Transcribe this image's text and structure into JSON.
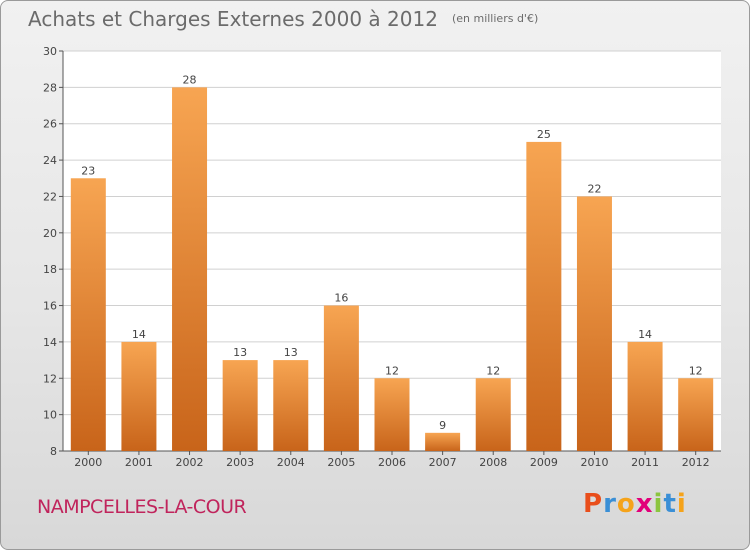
{
  "header": {
    "title": "Achats et Charges Externes 2000 à 2012",
    "subtitle": "(en milliers d'€)"
  },
  "footer": {
    "commune": "NAMPCELLES-LA-COUR",
    "logo_letters": [
      {
        "ch": "P",
        "color": "#e94e1b"
      },
      {
        "ch": "r",
        "color": "#3a8fd6"
      },
      {
        "ch": "o",
        "color": "#f5a31a"
      },
      {
        "ch": "x",
        "color": "#e2007a"
      },
      {
        "ch": "i",
        "color": "#8bc53f"
      },
      {
        "ch": "t",
        "color": "#3a8fd6"
      },
      {
        "ch": "i",
        "color": "#f5a31a"
      }
    ]
  },
  "chart_data": {
    "type": "bar",
    "categories": [
      "2000",
      "2001",
      "2002",
      "2003",
      "2004",
      "2005",
      "2006",
      "2007",
      "2008",
      "2009",
      "2010",
      "2011",
      "2012"
    ],
    "values": [
      23,
      14,
      28,
      13,
      13,
      16,
      12,
      9,
      12,
      25,
      22,
      14,
      12
    ],
    "ylim": [
      8,
      30
    ],
    "yticks": [
      8,
      10,
      12,
      14,
      16,
      18,
      20,
      22,
      24,
      26,
      28,
      30
    ],
    "grid": true,
    "bar_color_light": "#f7a552",
    "bar_color_dark": "#c8641a"
  }
}
